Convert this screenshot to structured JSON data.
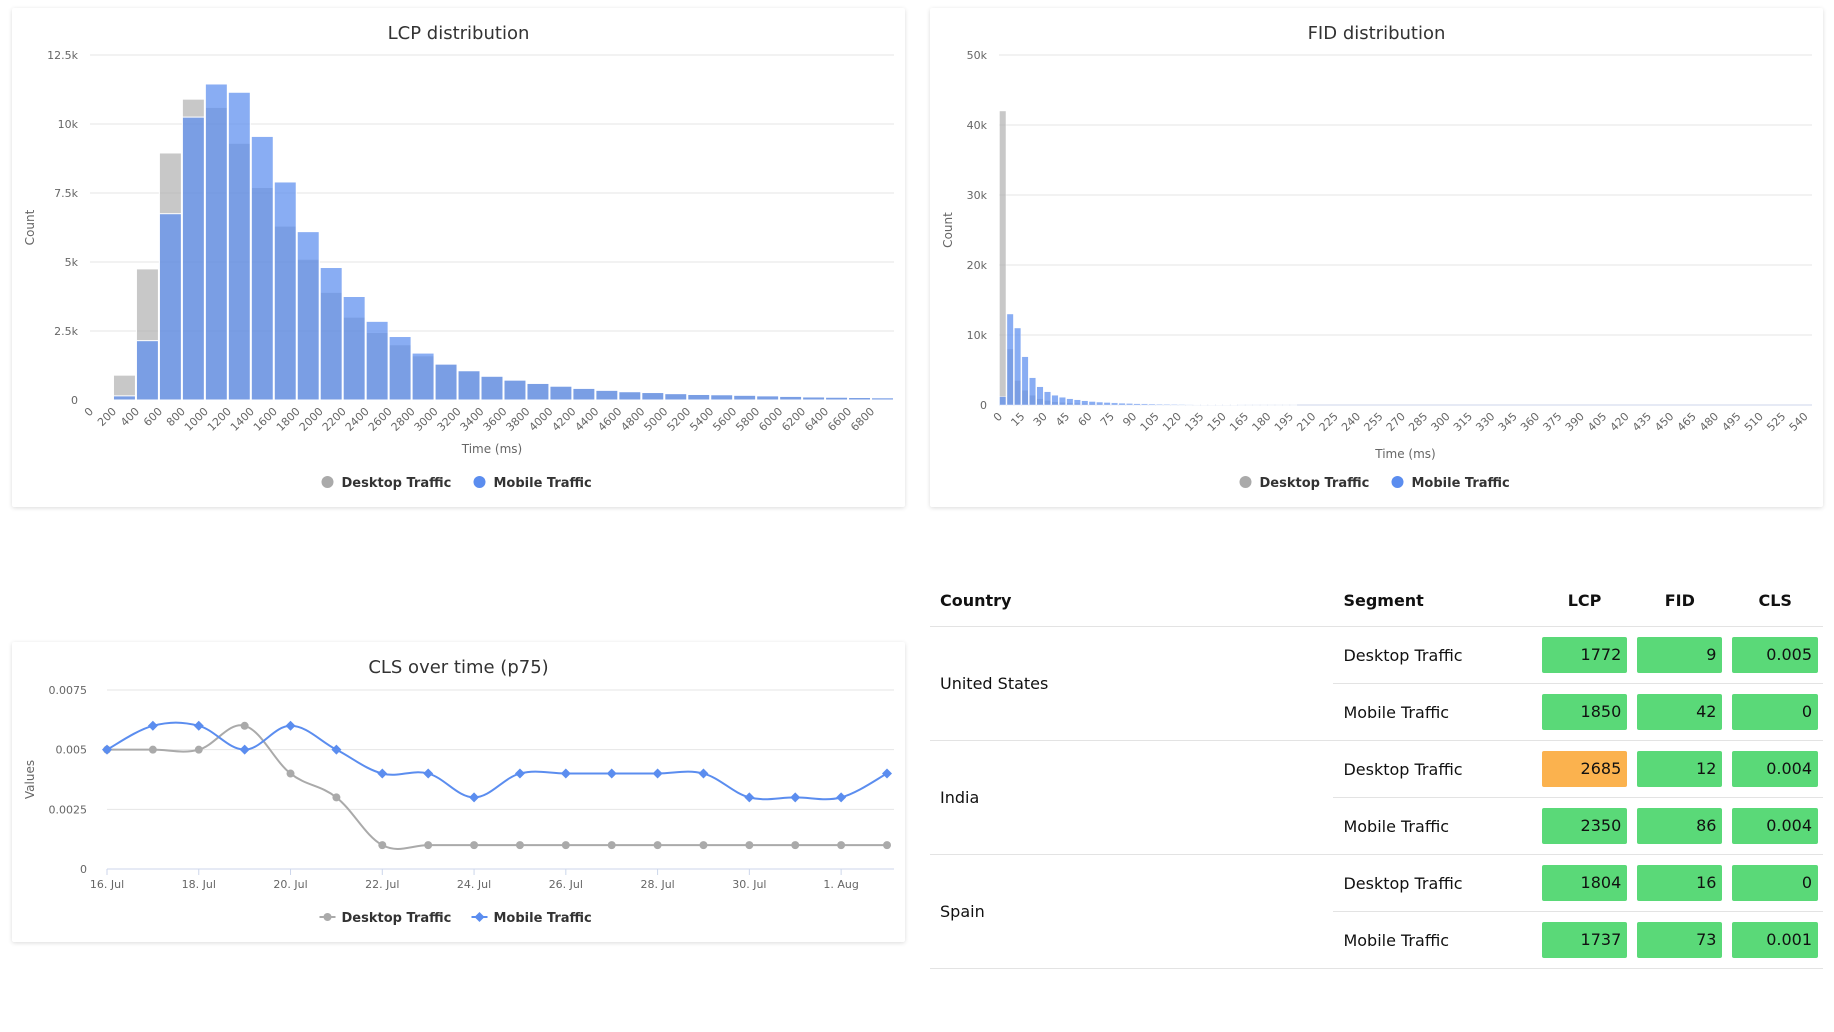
{
  "colors": {
    "desktop": "#aaaaaa",
    "mobile": "#5b8def",
    "good": "#5ad978",
    "needs_improvement": "#fbb24e"
  },
  "legend": {
    "desktop": "Desktop Traffic",
    "mobile": "Mobile Traffic"
  },
  "lcp_chart": {
    "title": "LCP distribution",
    "ylabel": "Count",
    "xlabel": "Time (ms)"
  },
  "fid_chart": {
    "title": "FID distribution",
    "ylabel": "Count",
    "xlabel": "Time (ms)"
  },
  "cls_chart": {
    "title": "CLS over time (p75)",
    "ylabel": "Values"
  },
  "chart_data": [
    {
      "id": "lcp",
      "type": "bar",
      "title": "LCP distribution",
      "xlabel": "Time (ms)",
      "ylabel": "Count",
      "ylim": [
        0,
        12500
      ],
      "yticks": [
        "0",
        "2.5k",
        "5k",
        "7.5k",
        "10k",
        "12.5k"
      ],
      "bin_width": 200,
      "x_start": 0,
      "xticks": [
        "0",
        "200",
        "400",
        "600",
        "800",
        "1000",
        "1200",
        "1400",
        "1600",
        "1800",
        "2000",
        "2200",
        "2400",
        "2600",
        "2800",
        "3000",
        "3200",
        "3400",
        "3600",
        "3800",
        "4000",
        "4200",
        "4400",
        "4600",
        "4800",
        "5000",
        "5200",
        "5400",
        "5600",
        "5800",
        "6000",
        "6200",
        "6400",
        "6600",
        "6800"
      ],
      "legend": "bottom-center",
      "grid": true,
      "series": [
        {
          "name": "Desktop Traffic",
          "values": [
            40,
            900,
            4750,
            8950,
            10900,
            10600,
            9300,
            7700,
            6300,
            5100,
            3900,
            3000,
            2450,
            2000,
            1600,
            1300,
            1060,
            860,
            720,
            600,
            500,
            420,
            350,
            300,
            270,
            230,
            200,
            190,
            170,
            150,
            130,
            110,
            100,
            90,
            80
          ]
        },
        {
          "name": "Mobile Traffic",
          "values": [
            30,
            150,
            2150,
            6750,
            10250,
            11450,
            11150,
            9550,
            7900,
            6100,
            4800,
            3750,
            2850,
            2300,
            1700,
            1300,
            1060,
            860,
            720,
            600,
            500,
            420,
            350,
            300,
            270,
            230,
            200,
            190,
            170,
            150,
            130,
            110,
            100,
            90,
            80
          ]
        }
      ]
    },
    {
      "id": "fid",
      "type": "bar",
      "title": "FID distribution",
      "xlabel": "Time (ms)",
      "ylabel": "Count",
      "ylim": [
        0,
        50000
      ],
      "yticks": [
        "0",
        "10k",
        "20k",
        "30k",
        "40k",
        "50k"
      ],
      "bin_width": 5,
      "x_start": 0,
      "xticks": [
        "0",
        "15",
        "30",
        "45",
        "60",
        "75",
        "90",
        "105",
        "120",
        "135",
        "150",
        "165",
        "180",
        "195",
        "210",
        "225",
        "240",
        "255",
        "270",
        "285",
        "300",
        "315",
        "330",
        "345",
        "360",
        "375",
        "390",
        "405",
        "420",
        "435",
        "450",
        "465",
        "480",
        "495",
        "510",
        "525",
        "540"
      ],
      "legend": "bottom-center",
      "grid": true,
      "series": [
        {
          "name": "Desktop Traffic",
          "values": [
            42000,
            8000,
            3500,
            2100,
            1400,
            900,
            650,
            480,
            380,
            300,
            250,
            210,
            180,
            150,
            130,
            110,
            95,
            85,
            75,
            65,
            55,
            50,
            45,
            40,
            35,
            30,
            28,
            25,
            22,
            20,
            18,
            16,
            14,
            12,
            10,
            9,
            8,
            7,
            6,
            5
          ]
        },
        {
          "name": "Mobile Traffic",
          "values": [
            1200,
            13000,
            11000,
            6900,
            3900,
            2600,
            1900,
            1400,
            1100,
            900,
            750,
            600,
            500,
            420,
            360,
            300,
            260,
            220,
            190,
            160,
            140,
            120,
            105,
            90,
            80,
            70,
            60,
            52,
            46,
            40,
            35,
            30,
            26,
            22,
            18,
            15,
            12,
            10,
            8,
            6
          ]
        }
      ]
    },
    {
      "id": "cls",
      "type": "line",
      "title": "CLS over time (p75)",
      "ylabel": "Values",
      "ylim": [
        0,
        0.0075
      ],
      "yticks": [
        "0",
        "0.0025",
        "0.005",
        "0.0075"
      ],
      "x": [
        "16. Jul",
        "17. Jul",
        "18. Jul",
        "19. Jul",
        "20. Jul",
        "21. Jul",
        "22. Jul",
        "23. Jul",
        "24. Jul",
        "25. Jul",
        "26. Jul",
        "27. Jul",
        "28. Jul",
        "29. Jul",
        "30. Jul",
        "31. Jul",
        "1. Aug",
        "2. Aug"
      ],
      "xticks": [
        "16. Jul",
        "18. Jul",
        "20. Jul",
        "22. Jul",
        "24. Jul",
        "26. Jul",
        "28. Jul",
        "30. Jul",
        "1. Aug"
      ],
      "legend": "bottom-center",
      "grid": true,
      "series": [
        {
          "name": "Desktop Traffic",
          "values": [
            0.005,
            0.005,
            0.005,
            0.006,
            0.004,
            0.003,
            0.001,
            0.001,
            0.001,
            0.001,
            0.001,
            0.001,
            0.001,
            0.001,
            0.001,
            0.001,
            0.001,
            0.001
          ]
        },
        {
          "name": "Mobile Traffic",
          "values": [
            0.005,
            0.006,
            0.006,
            0.005,
            0.006,
            0.005,
            0.004,
            0.004,
            0.003,
            0.004,
            0.004,
            0.004,
            0.004,
            0.004,
            0.003,
            0.003,
            0.003,
            0.004
          ]
        }
      ]
    }
  ],
  "table": {
    "headers": {
      "country": "Country",
      "segment": "Segment",
      "lcp": "LCP",
      "fid": "FID",
      "cls": "CLS"
    },
    "rows": [
      {
        "country": "United States",
        "segments": [
          {
            "segment": "Desktop Traffic",
            "lcp": "1772",
            "fid": "9",
            "cls": "0.005",
            "lcp_status": "good"
          },
          {
            "segment": "Mobile Traffic",
            "lcp": "1850",
            "fid": "42",
            "cls": "0",
            "lcp_status": "good"
          }
        ]
      },
      {
        "country": "India",
        "segments": [
          {
            "segment": "Desktop Traffic",
            "lcp": "2685",
            "fid": "12",
            "cls": "0.004",
            "lcp_status": "needs_improvement"
          },
          {
            "segment": "Mobile Traffic",
            "lcp": "2350",
            "fid": "86",
            "cls": "0.004",
            "lcp_status": "good"
          }
        ]
      },
      {
        "country": "Spain",
        "segments": [
          {
            "segment": "Desktop Traffic",
            "lcp": "1804",
            "fid": "16",
            "cls": "0",
            "lcp_status": "good"
          },
          {
            "segment": "Mobile Traffic",
            "lcp": "1737",
            "fid": "73",
            "cls": "0.001",
            "lcp_status": "good"
          }
        ]
      }
    ]
  }
}
